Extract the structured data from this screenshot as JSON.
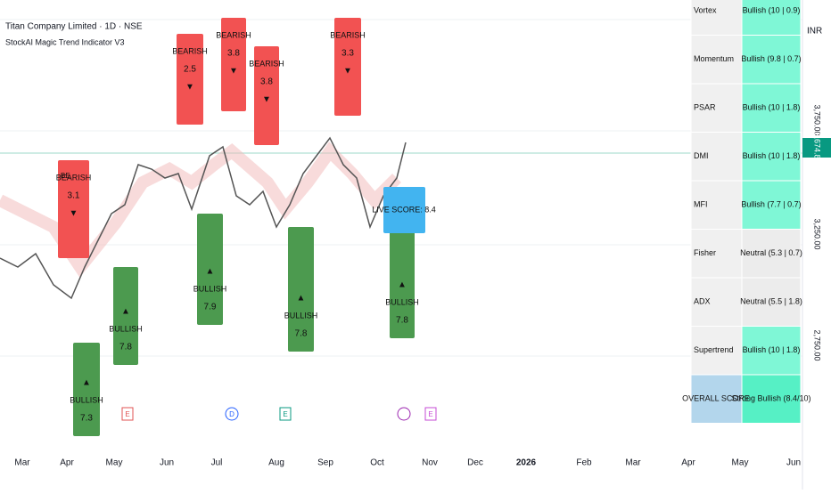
{
  "header": {
    "title": "Titan Company Limited · 1D · NSE",
    "subtitle": "StockAI Magic Trend Indicator V3",
    "currency": "INR"
  },
  "price_axis": {
    "labels": [
      "3,750.00",
      "3,250.00",
      "2,750.00"
    ],
    "last_price": "3,674.80"
  },
  "time_axis": {
    "labels": [
      "Mar",
      "Apr",
      "May",
      "Jun",
      "Jul",
      "Aug",
      "Sep",
      "Oct",
      "Nov",
      "Dec",
      "2026",
      "Feb",
      "Mar",
      "Apr",
      "May",
      "Jun"
    ]
  },
  "signals": {
    "bearish": [
      {
        "label": "BEARISH",
        "score": "3.1",
        "partial": "BE"
      },
      {
        "label": "BEARISH",
        "score": "2.5"
      },
      {
        "label": "BEARISH",
        "score": "3.8"
      },
      {
        "label": "BEARISH",
        "score": "3.8"
      },
      {
        "label": "BEARISH",
        "score": "3.3"
      }
    ],
    "bullish": [
      {
        "label": "BULLISH",
        "score": "7.3"
      },
      {
        "label": "BULLISH",
        "score": "7.8"
      },
      {
        "label": "BULLISH",
        "score": "7.9"
      },
      {
        "label": "BULLISH",
        "score": "7.8"
      },
      {
        "label": "BULLISH",
        "score": "7.8"
      }
    ],
    "live": "LIVE SCORE: 8.4"
  },
  "events": [
    "E",
    "D",
    "E",
    "E"
  ],
  "table": {
    "rows": [
      [
        "Vortex",
        "Bullish (10 | 0.9)"
      ],
      [
        "Momentum",
        "Bullish (9.8 | 0.7)"
      ],
      [
        "PSAR",
        "Bullish (10 | 1.8)"
      ],
      [
        "DMI",
        "Bullish (10 | 1.8)"
      ],
      [
        "MFI",
        "Bullish (7.7 | 0.7)"
      ],
      [
        "Fisher",
        "Neutral (5.3 | 0.7)"
      ],
      [
        "ADX",
        "Neutral (5.5 | 1.8)"
      ],
      [
        "Supertrend",
        "Bullish (10 | 1.8)"
      ],
      [
        "OVERALL SCORE",
        "Strong Bullish (8.4/10)"
      ]
    ]
  }
}
